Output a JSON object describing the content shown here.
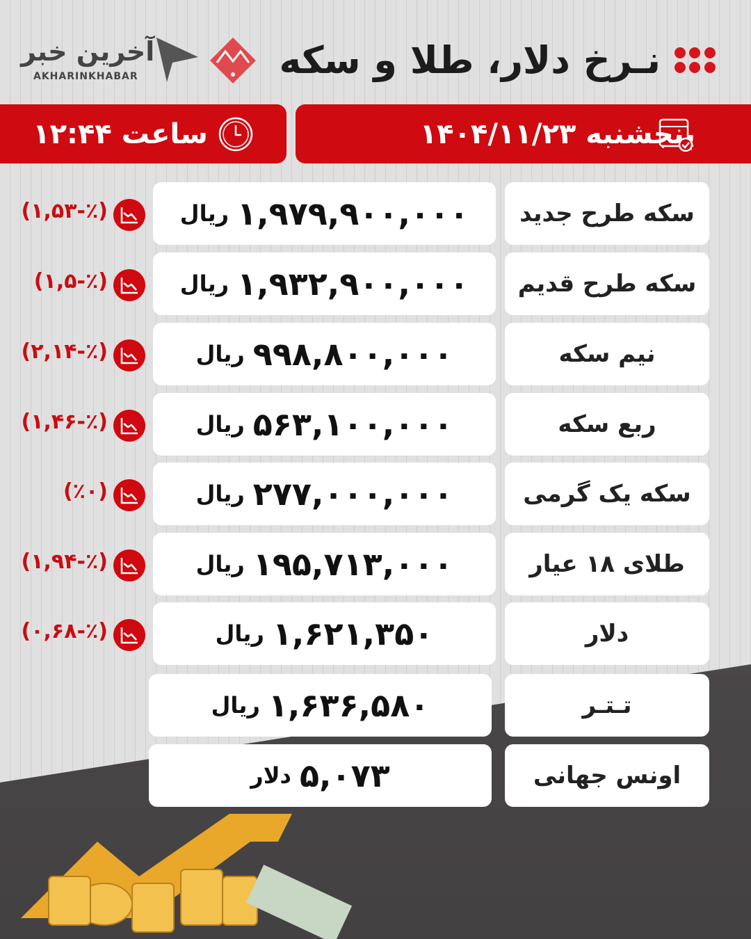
{
  "header": {
    "title": "نـرخ دلار، طلا و سکه",
    "logo_fa": "آخرین خبر",
    "logo_en": "AKHARINKHABAR"
  },
  "date_bar": {
    "label": "پنجشنبه ۱۴۰۴/۱۱/۲۳",
    "icon": "calendar-icon"
  },
  "time_bar": {
    "label": "ساعت ۱۲:۴۴",
    "icon": "clock-icon"
  },
  "colors": {
    "accent": "#cf0a10",
    "background": "#e2e2e2",
    "text": "#111111"
  },
  "rows": [
    {
      "name": "سکه طرح جدید",
      "value": "۱,۹۷۹,۹۰۰,۰۰۰",
      "unit": "ریال",
      "change": "(۱,۵۳-٪)",
      "trend": "down"
    },
    {
      "name": "سکه طرح قدیم",
      "value": "۱,۹۳۲,۹۰۰,۰۰۰",
      "unit": "ریال",
      "change": "(۱,۵-٪)",
      "trend": "down"
    },
    {
      "name": "نیم سکه",
      "value": "۹۹۸,۸۰۰,۰۰۰",
      "unit": "ریال",
      "change": "(۲,۱۴-٪)",
      "trend": "down"
    },
    {
      "name": "ربع سکه",
      "value": "۵۶۳,۱۰۰,۰۰۰",
      "unit": "ریال",
      "change": "(۱,۴۶-٪)",
      "trend": "down"
    },
    {
      "name": "سکه یک گرمی",
      "value": "۲۷۷,۰۰۰,۰۰۰",
      "unit": "ریال",
      "change": "(٪۰)",
      "trend": "down"
    },
    {
      "name": "طلای ۱۸ عیار",
      "value": "۱۹۵,۷۱۳,۰۰۰",
      "unit": "ریال",
      "change": "(۱,۹۴-٪)",
      "trend": "down"
    },
    {
      "name": "دلار",
      "value": "۱,۶۲۱,۳۵۰",
      "unit": "ریال",
      "change": "(۰,۶۸-٪)",
      "trend": "down"
    },
    {
      "name": "تـتـر",
      "value": "۱,۶۳۶,۵۸۰",
      "unit": "ریال"
    },
    {
      "name": "اونس جهانی",
      "value": "۵,۰۷۳",
      "unit": "دلار"
    }
  ]
}
